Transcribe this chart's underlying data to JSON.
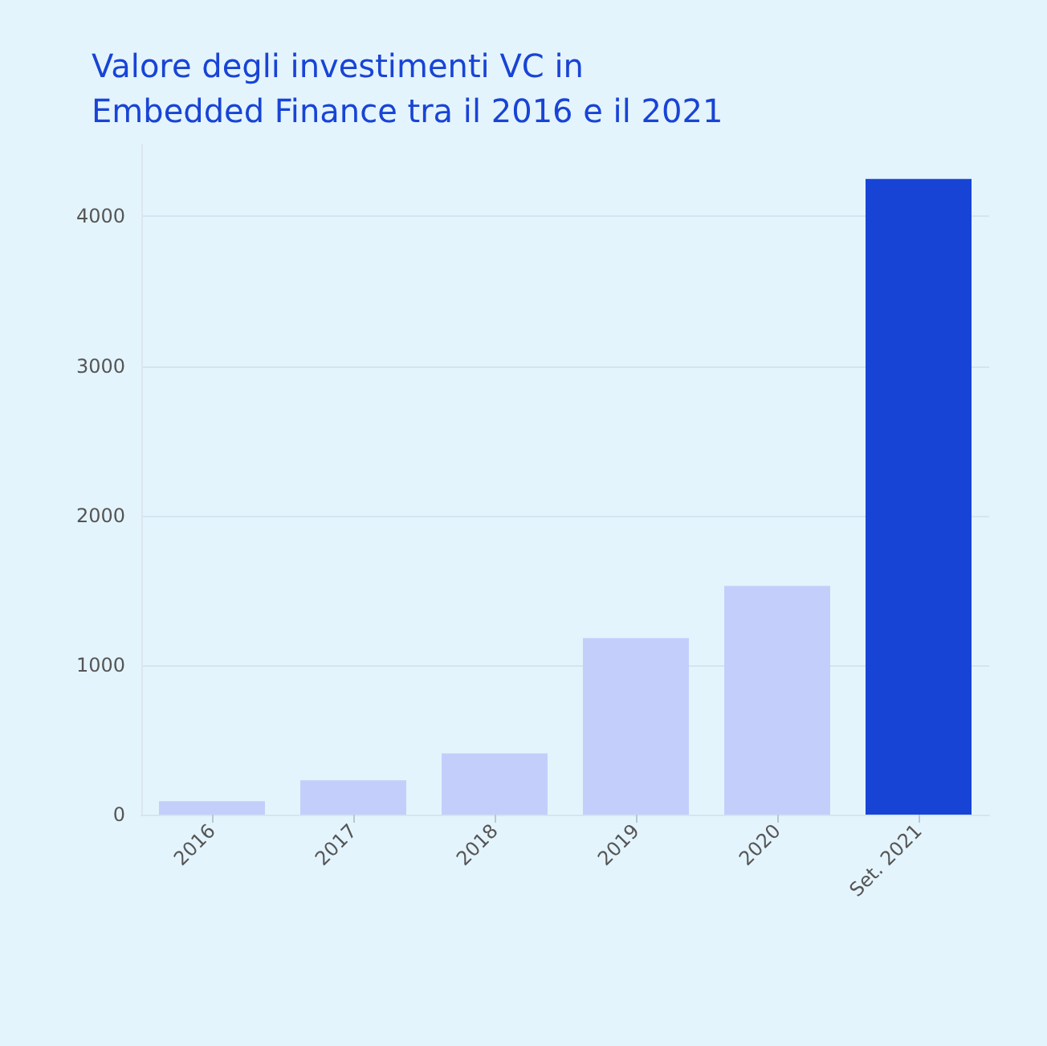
{
  "chart_data": {
    "type": "bar",
    "title": "Valore degli investimenti VC in\nEmbedded Finance tra il 2016 e il 2021",
    "categories": [
      "2016",
      "2017",
      "2018",
      "2019",
      "2020",
      "Set. 2021"
    ],
    "values": [
      90,
      230,
      410,
      1180,
      1530,
      4250
    ],
    "colors": [
      "#c3cffa",
      "#c3cffa",
      "#c3cffa",
      "#c3cffa",
      "#c3cffa",
      "#1844d6"
    ],
    "ylim": [
      0,
      4480
    ],
    "yticks": [
      0,
      1000,
      2000,
      3000,
      4000
    ],
    "grid": "y"
  }
}
